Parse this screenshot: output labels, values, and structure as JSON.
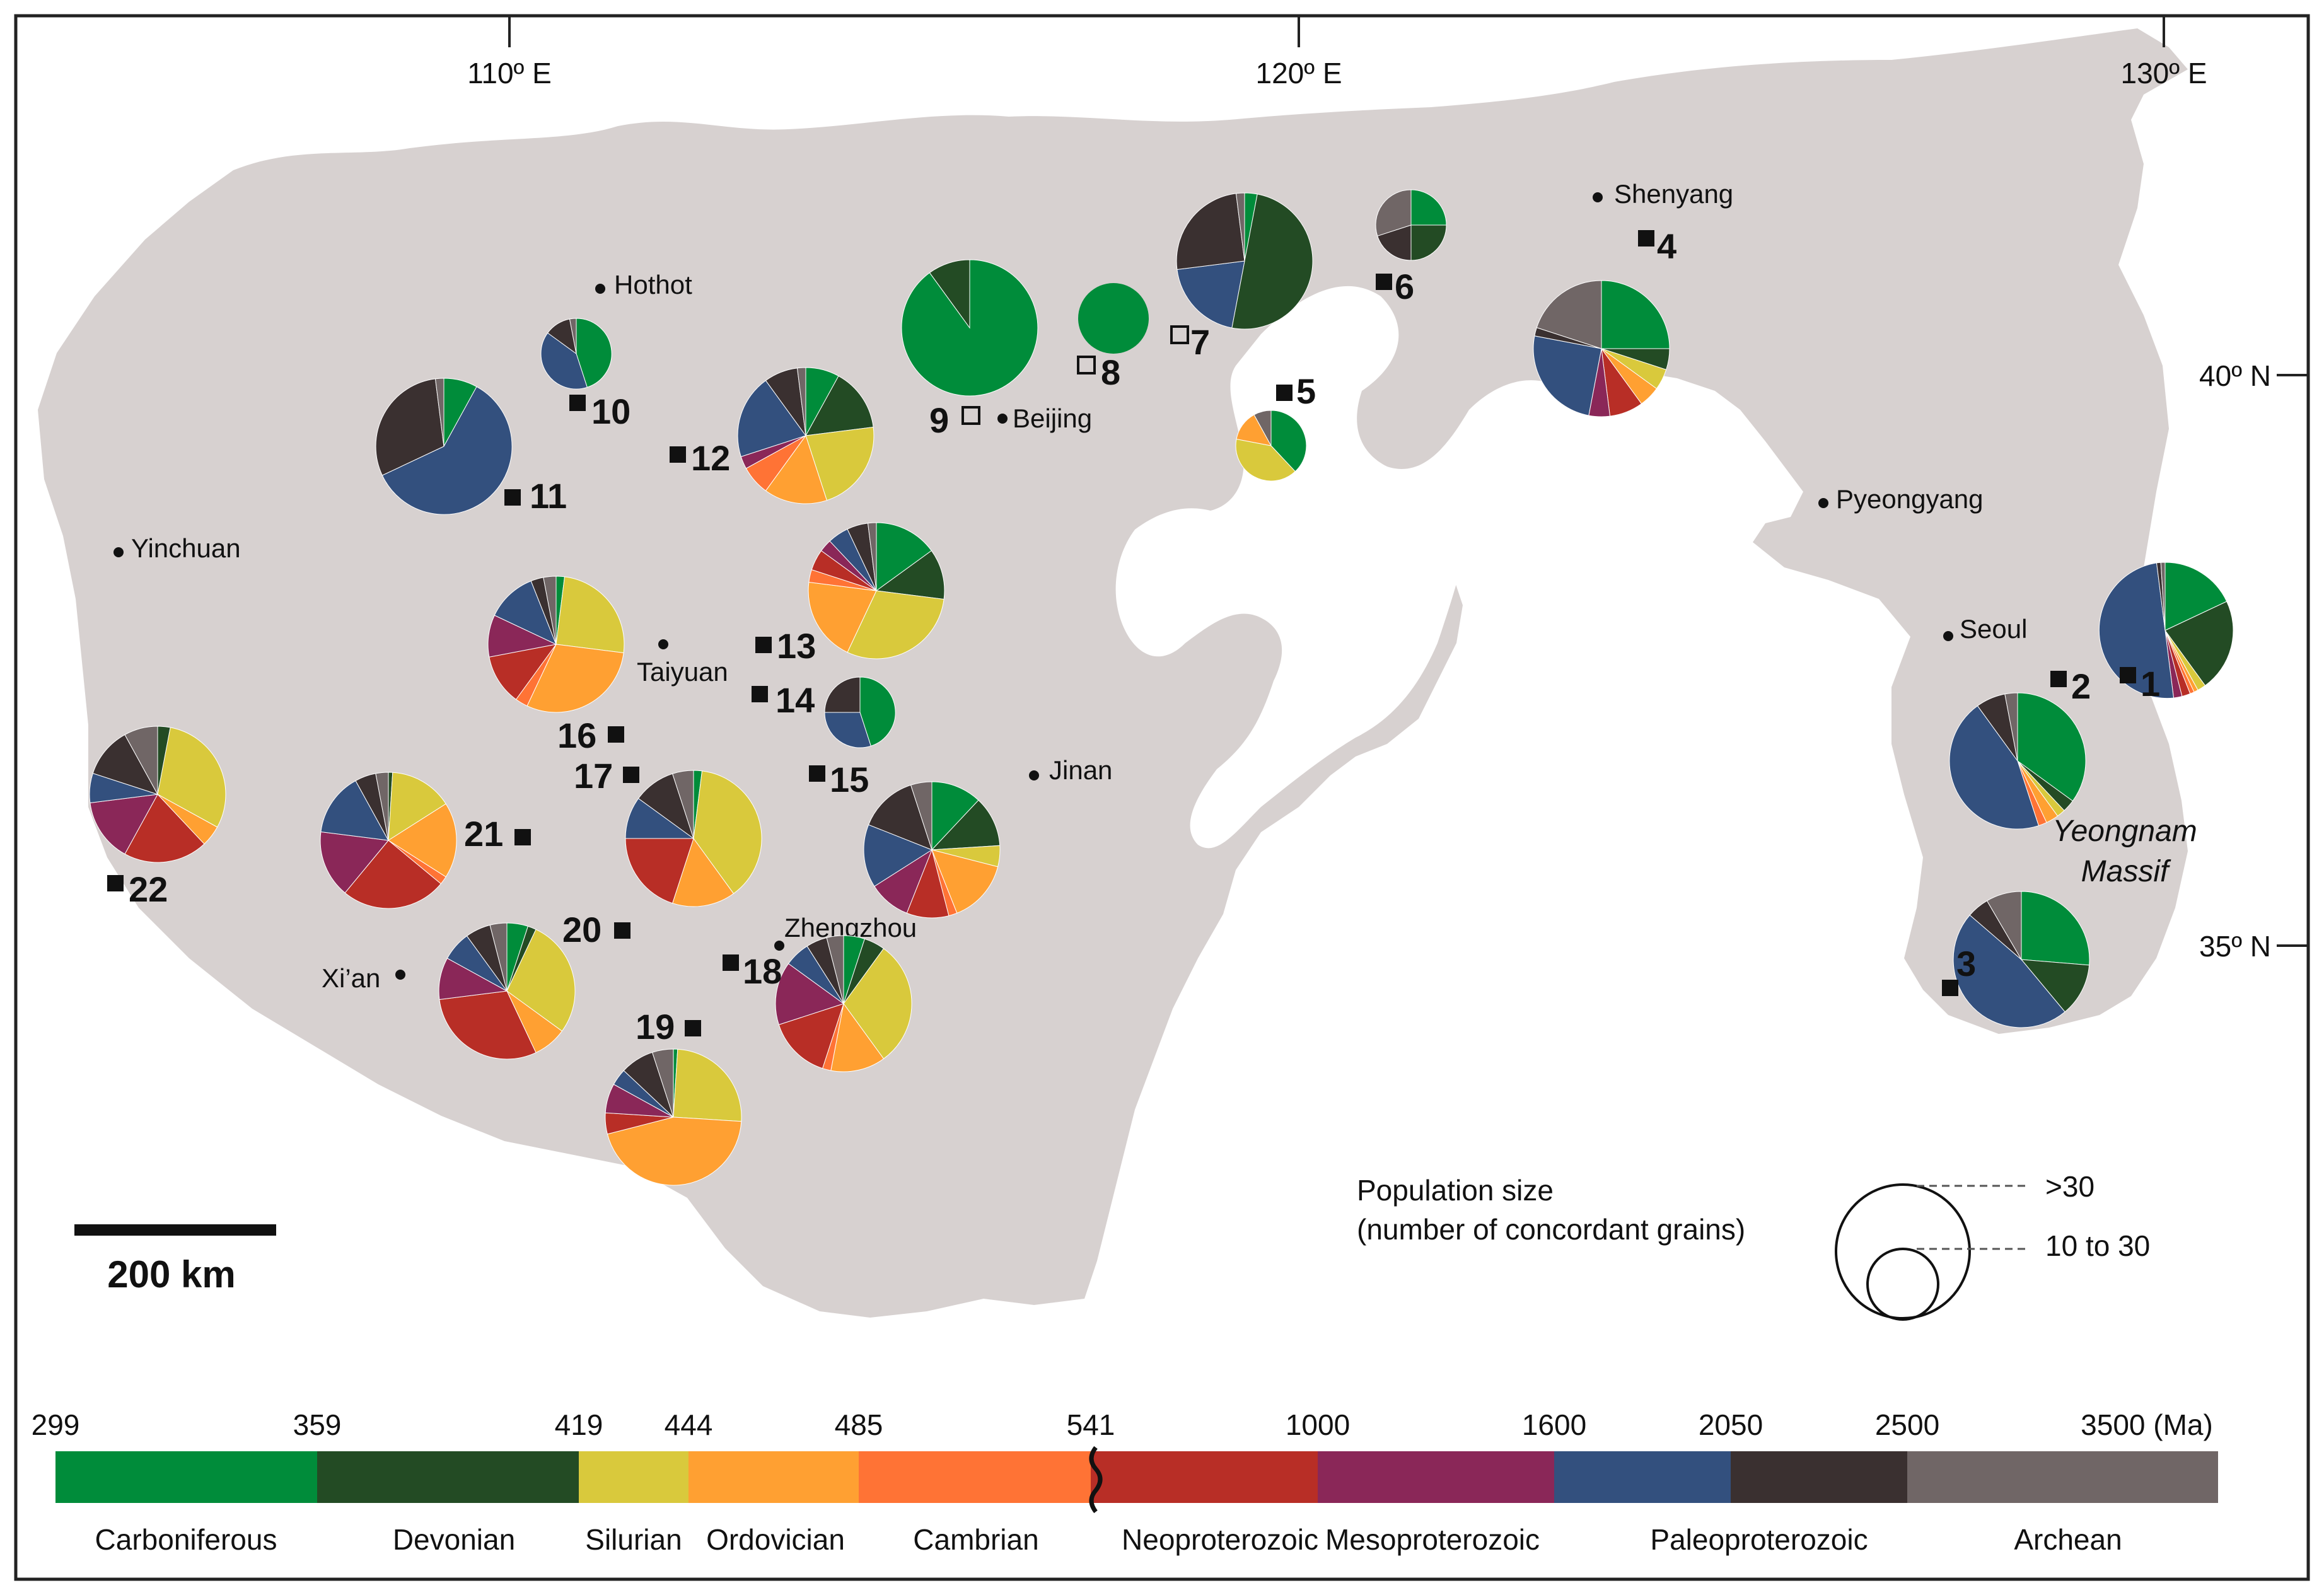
{
  "map": {
    "longitude_labels": [
      "110º E",
      "120º E",
      "130º E"
    ],
    "latitude_labels": [
      "40º N",
      "35º N"
    ],
    "cities": [
      "Hothot",
      "Beijing",
      "Shenyang",
      "Pyeongyang",
      "Seoul",
      "Yinchuan",
      "Taiyuan",
      "Jinan",
      "Zhengzhou",
      "Xi’an"
    ],
    "region_label": [
      "Yeongnam",
      "Massif"
    ],
    "scale_bar": "200 km",
    "legend": {
      "title_line1": "Population size",
      "title_line2": "(number of concordant grains)",
      "large": ">30",
      "small": "10 to 30"
    }
  },
  "samples": [
    {
      "id": "1",
      "size": "large",
      "fractions": [
        0.18,
        0.22,
        0.02,
        0.01,
        0.01,
        0.02,
        0.02,
        0.5,
        0.01,
        0.01
      ]
    },
    {
      "id": "2",
      "size": "large",
      "fractions": [
        0.35,
        0.03,
        0.02,
        0.03,
        0.02,
        0.0,
        0.0,
        0.45,
        0.07,
        0.03
      ]
    },
    {
      "id": "3",
      "size": "large",
      "fractions": [
        0.25,
        0.12,
        0.0,
        0.0,
        0.0,
        0.0,
        0.0,
        0.45,
        0.05,
        0.08
      ]
    },
    {
      "id": "4",
      "size": "large",
      "fractions": [
        0.25,
        0.05,
        0.05,
        0.05,
        0.0,
        0.08,
        0.05,
        0.25,
        0.02,
        0.2
      ]
    },
    {
      "id": "5",
      "size": "small",
      "fractions": [
        0.38,
        0.0,
        0.4,
        0.14,
        0.0,
        0.0,
        0.0,
        0.0,
        0.0,
        0.08
      ]
    },
    {
      "id": "6",
      "size": "small",
      "fractions": [
        0.25,
        0.25,
        0.0,
        0.0,
        0.0,
        0.0,
        0.0,
        0.0,
        0.2,
        0.3
      ]
    },
    {
      "id": "7",
      "size": "large",
      "fractions": [
        0.03,
        0.5,
        0.0,
        0.0,
        0.0,
        0.0,
        0.0,
        0.2,
        0.25,
        0.02
      ]
    },
    {
      "id": "8",
      "size": "small",
      "fractions": [
        1.0,
        0.0,
        0.0,
        0.0,
        0.0,
        0.0,
        0.0,
        0.0,
        0.0,
        0.0
      ]
    },
    {
      "id": "9",
      "size": "large",
      "fractions": [
        0.9,
        0.1,
        0.0,
        0.0,
        0.0,
        0.0,
        0.0,
        0.0,
        0.0,
        0.0
      ]
    },
    {
      "id": "10",
      "size": "small",
      "fractions": [
        0.45,
        0.0,
        0.0,
        0.0,
        0.0,
        0.0,
        0.0,
        0.4,
        0.12,
        0.03
      ]
    },
    {
      "id": "11",
      "size": "large",
      "fractions": [
        0.08,
        0.0,
        0.0,
        0.0,
        0.0,
        0.0,
        0.0,
        0.6,
        0.3,
        0.02
      ]
    },
    {
      "id": "12",
      "size": "large",
      "fractions": [
        0.08,
        0.15,
        0.22,
        0.15,
        0.07,
        0.0,
        0.03,
        0.2,
        0.08,
        0.02
      ]
    },
    {
      "id": "13",
      "size": "large",
      "fractions": [
        0.15,
        0.12,
        0.3,
        0.2,
        0.03,
        0.05,
        0.03,
        0.05,
        0.05,
        0.02
      ]
    },
    {
      "id": "14",
      "size": "small",
      "fractions": [
        0.45,
        0.0,
        0.0,
        0.0,
        0.0,
        0.0,
        0.0,
        0.3,
        0.25,
        0.0
      ]
    },
    {
      "id": "15",
      "size": "large",
      "fractions": [
        0.12,
        0.12,
        0.05,
        0.15,
        0.02,
        0.1,
        0.1,
        0.15,
        0.14,
        0.05
      ]
    },
    {
      "id": "16",
      "size": "large",
      "fractions": [
        0.02,
        0.0,
        0.25,
        0.3,
        0.03,
        0.12,
        0.1,
        0.12,
        0.03,
        0.03
      ]
    },
    {
      "id": "17",
      "size": "large",
      "fractions": [
        0.02,
        0.0,
        0.38,
        0.15,
        0.0,
        0.2,
        0.0,
        0.1,
        0.1,
        0.05
      ]
    },
    {
      "id": "18",
      "size": "large",
      "fractions": [
        0.05,
        0.05,
        0.3,
        0.13,
        0.02,
        0.15,
        0.15,
        0.06,
        0.05,
        0.04
      ]
    },
    {
      "id": "19",
      "size": "large",
      "fractions": [
        0.01,
        0.0,
        0.25,
        0.45,
        0.0,
        0.05,
        0.07,
        0.04,
        0.08,
        0.05
      ]
    },
    {
      "id": "20",
      "size": "large",
      "fractions": [
        0.05,
        0.02,
        0.28,
        0.08,
        0.0,
        0.3,
        0.1,
        0.07,
        0.06,
        0.04
      ]
    },
    {
      "id": "21",
      "size": "large",
      "fractions": [
        0.0,
        0.01,
        0.15,
        0.18,
        0.02,
        0.25,
        0.16,
        0.15,
        0.05,
        0.03
      ]
    },
    {
      "id": "22",
      "size": "large",
      "fractions": [
        0.0,
        0.03,
        0.3,
        0.05,
        0.0,
        0.2,
        0.15,
        0.07,
        0.12,
        0.08
      ]
    }
  ],
  "age_bar": {
    "ticks": [
      "299",
      "359",
      "419",
      "444",
      "485",
      "541",
      "1000",
      "1600",
      "2050",
      "2500",
      "3500 (Ma)"
    ],
    "periods": [
      {
        "name": "Carboniferous",
        "color": "#008c3a"
      },
      {
        "name": "Devonian",
        "color": "#234b24"
      },
      {
        "name": "Silurian",
        "color": "#d9c93c"
      },
      {
        "name": "Ordovician",
        "color": "#ffa032"
      },
      {
        "name": "Cambrian",
        "color": "#ff7335"
      },
      {
        "name": "Neoproterozoic",
        "color": "#b82e26"
      },
      {
        "name": "Mesoproterozoic",
        "color": "#8a2758"
      },
      {
        "name": "Paleoproterozoic",
        "color": "#33507e"
      },
      {
        "name": "",
        "color": "#3a3030"
      },
      {
        "name": "Archean",
        "color": "#706666"
      }
    ]
  },
  "colors": {
    "land": "#d7d1d0",
    "sea": "#ffffff",
    "frame": "#222222"
  }
}
